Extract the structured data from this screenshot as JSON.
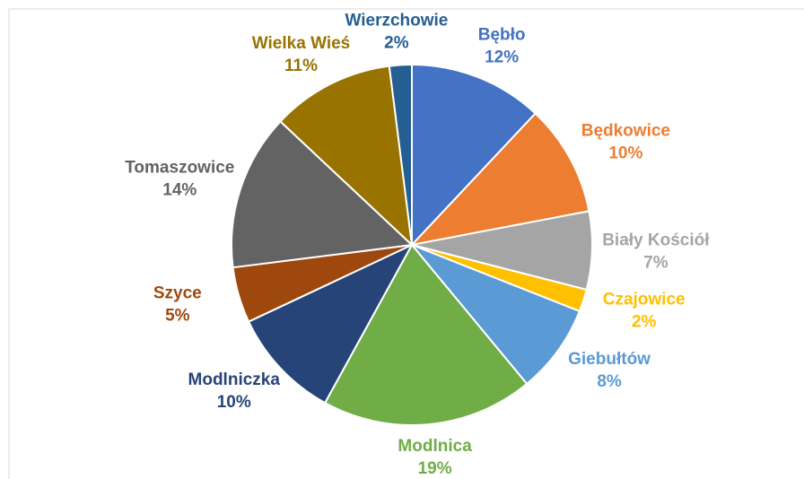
{
  "chart_data": {
    "type": "pie",
    "categories": [
      "Bębło",
      "Będkowice",
      "Biały Kościół",
      "Czajowice",
      "Giebułtów",
      "Modlnica",
      "Modlniczka",
      "Szyce",
      "Tomaszowice",
      "Wielka Wieś",
      "Wierzchowie"
    ],
    "values": [
      12,
      10,
      7,
      2,
      8,
      19,
      10,
      5,
      14,
      11,
      2
    ],
    "value_labels": [
      "12%",
      "10%",
      "7%",
      "2%",
      "8%",
      "19%",
      "10%",
      "5%",
      "14%",
      "11%",
      "2%"
    ],
    "colors": [
      "#4472c4",
      "#ed7d31",
      "#a5a5a5",
      "#ffc000",
      "#5b9bd5",
      "#70ad47",
      "#264478",
      "#9e480e",
      "#636363",
      "#997300",
      "#255e91"
    ]
  }
}
